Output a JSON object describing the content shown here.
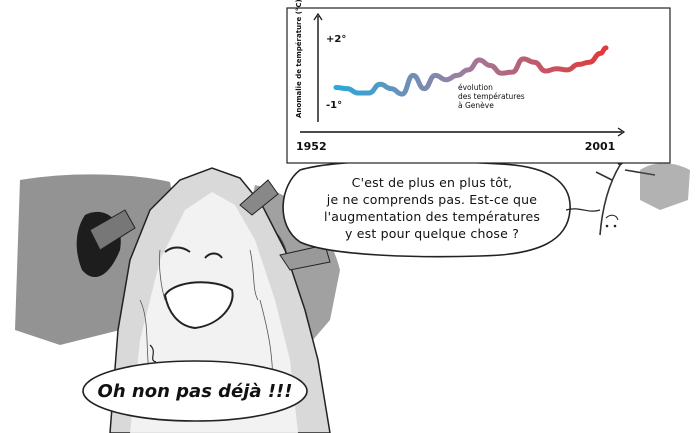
{
  "speech_bubbles": {
    "main_lines": [
      "C'est de plus en plus tôt,",
      "je ne comprends pas. Est-ce que",
      "l'augmentation des températures",
      "y est pour quelque chose ?"
    ],
    "tree_exclamation": "Oh non pas déjà !!!"
  },
  "chart_data": {
    "type": "line",
    "ylabel": "Anomalie de température (°C)",
    "y_tick_labels": [
      "+2°",
      "-1°"
    ],
    "x_tick_labels": [
      "1952",
      "2001"
    ],
    "annotation": [
      "évolution",
      "des températures",
      "à Genève"
    ],
    "colors": {
      "start": "#2aa8d8",
      "end": "#e2393a"
    },
    "series": [
      {
        "x": [
          1952,
          1954,
          1956,
          1958,
          1960,
          1962,
          1964,
          1966,
          1968,
          1970,
          1972,
          1974,
          1976,
          1978,
          1980,
          1982,
          1984,
          1986,
          1988,
          1990,
          1992,
          1994,
          1996,
          1998,
          2000,
          2001
        ],
        "values": [
          -0.25,
          -0.3,
          -0.5,
          -0.5,
          -0.1,
          -0.3,
          -0.55,
          0.3,
          -0.3,
          0.3,
          0.1,
          0.3,
          0.55,
          1.0,
          0.75,
          0.4,
          0.45,
          1.05,
          0.9,
          0.5,
          0.6,
          0.55,
          0.8,
          0.9,
          1.3,
          1.55
        ]
      }
    ],
    "grid": false
  }
}
